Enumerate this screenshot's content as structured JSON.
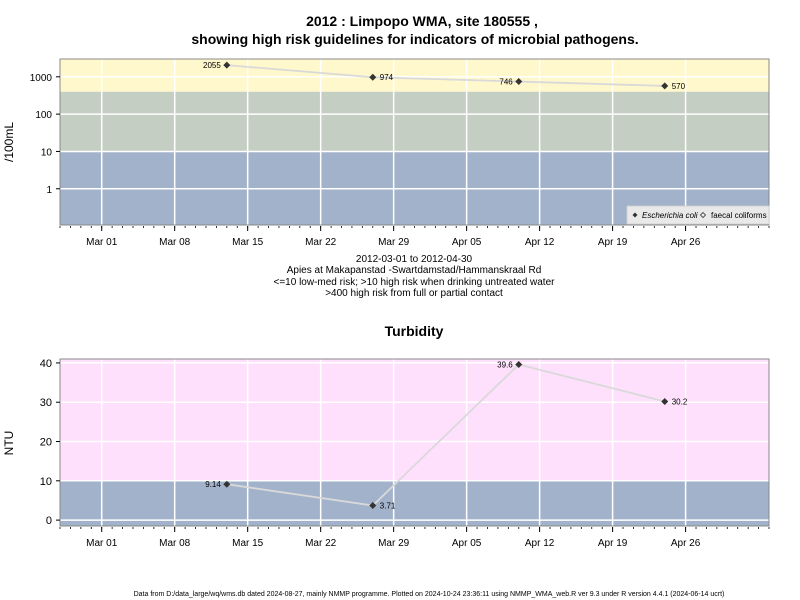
{
  "colors": {
    "high_risk_contact": "#fff8cc",
    "high_risk_drinking": "#c4cec3",
    "low_med_risk": "#a3b2cb",
    "turbidity_high": "#ffe0fc",
    "turbidity_low": "#a3b2cb",
    "line": "#d9d9d9",
    "marker": "#333333",
    "grid": "#ffffff"
  },
  "chart_data": [
    {
      "type": "line",
      "title": "2012 : Limpopo WMA, site 180555 ,",
      "title_line2": "showing high risk guidelines for indicators of microbial pathogens.",
      "ylabel": "/100mL",
      "yscale": "log",
      "y_ticks": [
        "1",
        "10",
        "100",
        "1000"
      ],
      "x_tick_labels": [
        "Mar 01",
        "Mar 08",
        "Mar 15",
        "Mar 22",
        "Mar 29",
        "Apr 05",
        "Apr 12",
        "Apr 19",
        "Apr 26"
      ],
      "x_tick_dates": [
        "2012-03-01",
        "2012-03-08",
        "2012-03-15",
        "2012-03-22",
        "2012-03-29",
        "2012-04-05",
        "2012-04-12",
        "2012-04-19",
        "2012-04-26"
      ],
      "xlim": [
        "2012-02-26",
        "2012-05-04"
      ],
      "bands": [
        {
          "from": 0.1,
          "to": 10,
          "color": "low_med_risk"
        },
        {
          "from": 10,
          "to": 400,
          "color": "high_risk_drinking"
        },
        {
          "from": 400,
          "to": 3000,
          "color": "high_risk_contact"
        }
      ],
      "series": [
        {
          "name": "Escherichia coli",
          "x": [
            "2012-03-13",
            "2012-03-27",
            "2012-04-10",
            "2012-04-24"
          ],
          "values": [
            2055,
            974,
            746,
            570
          ],
          "labels": [
            "2055",
            "974",
            "746",
            "570"
          ]
        }
      ],
      "legend": [
        "Escherichia coli",
        "faecal coliforms"
      ],
      "legend_position": "bottom-right",
      "notes": [
        "2012-03-01 to 2012-04-30",
        "Apies at Makapanstad -Swartdamstad/Hammanskraal Rd",
        "<=10 low-med risk; >10 high risk when drinking untreated water",
        ">400 high risk from full or partial contact"
      ]
    },
    {
      "type": "line",
      "title": "Turbidity",
      "ylabel": "NTU",
      "ylim": [
        -1.5,
        41
      ],
      "y_ticks": [
        "0",
        "10",
        "20",
        "30",
        "40"
      ],
      "x_tick_labels": [
        "Mar 01",
        "Mar 08",
        "Mar 15",
        "Mar 22",
        "Mar 29",
        "Apr 05",
        "Apr 12",
        "Apr 19",
        "Apr 26"
      ],
      "x_tick_dates": [
        "2012-03-01",
        "2012-03-08",
        "2012-03-15",
        "2012-03-22",
        "2012-03-29",
        "2012-04-05",
        "2012-04-12",
        "2012-04-19",
        "2012-04-26"
      ],
      "xlim": [
        "2012-02-26",
        "2012-05-04"
      ],
      "bands": [
        {
          "from": -1.5,
          "to": 10,
          "color": "turbidity_low"
        },
        {
          "from": 10,
          "to": 41,
          "color": "turbidity_high"
        }
      ],
      "series": [
        {
          "x": [
            "2012-03-13",
            "2012-03-27",
            "2012-04-10",
            "2012-04-24"
          ],
          "values": [
            9.14,
            3.71,
            39.6,
            30.2
          ],
          "labels": [
            "9.14",
            "3.71",
            "39.6",
            "30.2"
          ]
        }
      ]
    }
  ],
  "footer": "Data from D:/data_large/wq/wms.db dated 2024-08-27, mainly NMMP programme. Plotted on 2024-10-24 23:36:11 using NMMP_WMA_web.R ver 9.3 under R version 4.4.1 (2024-06-14 ucrt)"
}
